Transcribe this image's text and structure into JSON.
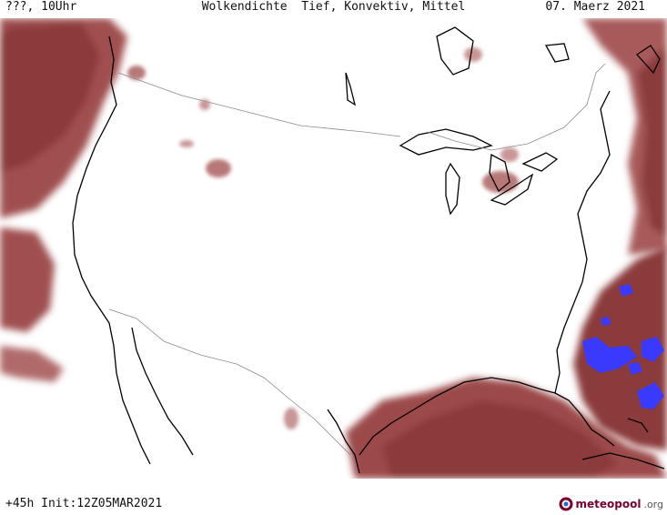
{
  "header": {
    "left": "???, 10Uhr",
    "center": "Wolkendichte  Tief, Konvektiv, Mittel",
    "right": "07. Maerz 2021"
  },
  "footer": {
    "left": "+45h Init:12Z05MAR2021"
  },
  "logo": {
    "name": "meteopool",
    "suffix": ".org"
  },
  "colors": {
    "cloud_dark": "#8b3a3a",
    "cloud_mid": "#a85a5a",
    "cloud_light": "#c99595",
    "convective": "#3a3aff",
    "coast": "#000000",
    "border": "#888888"
  }
}
